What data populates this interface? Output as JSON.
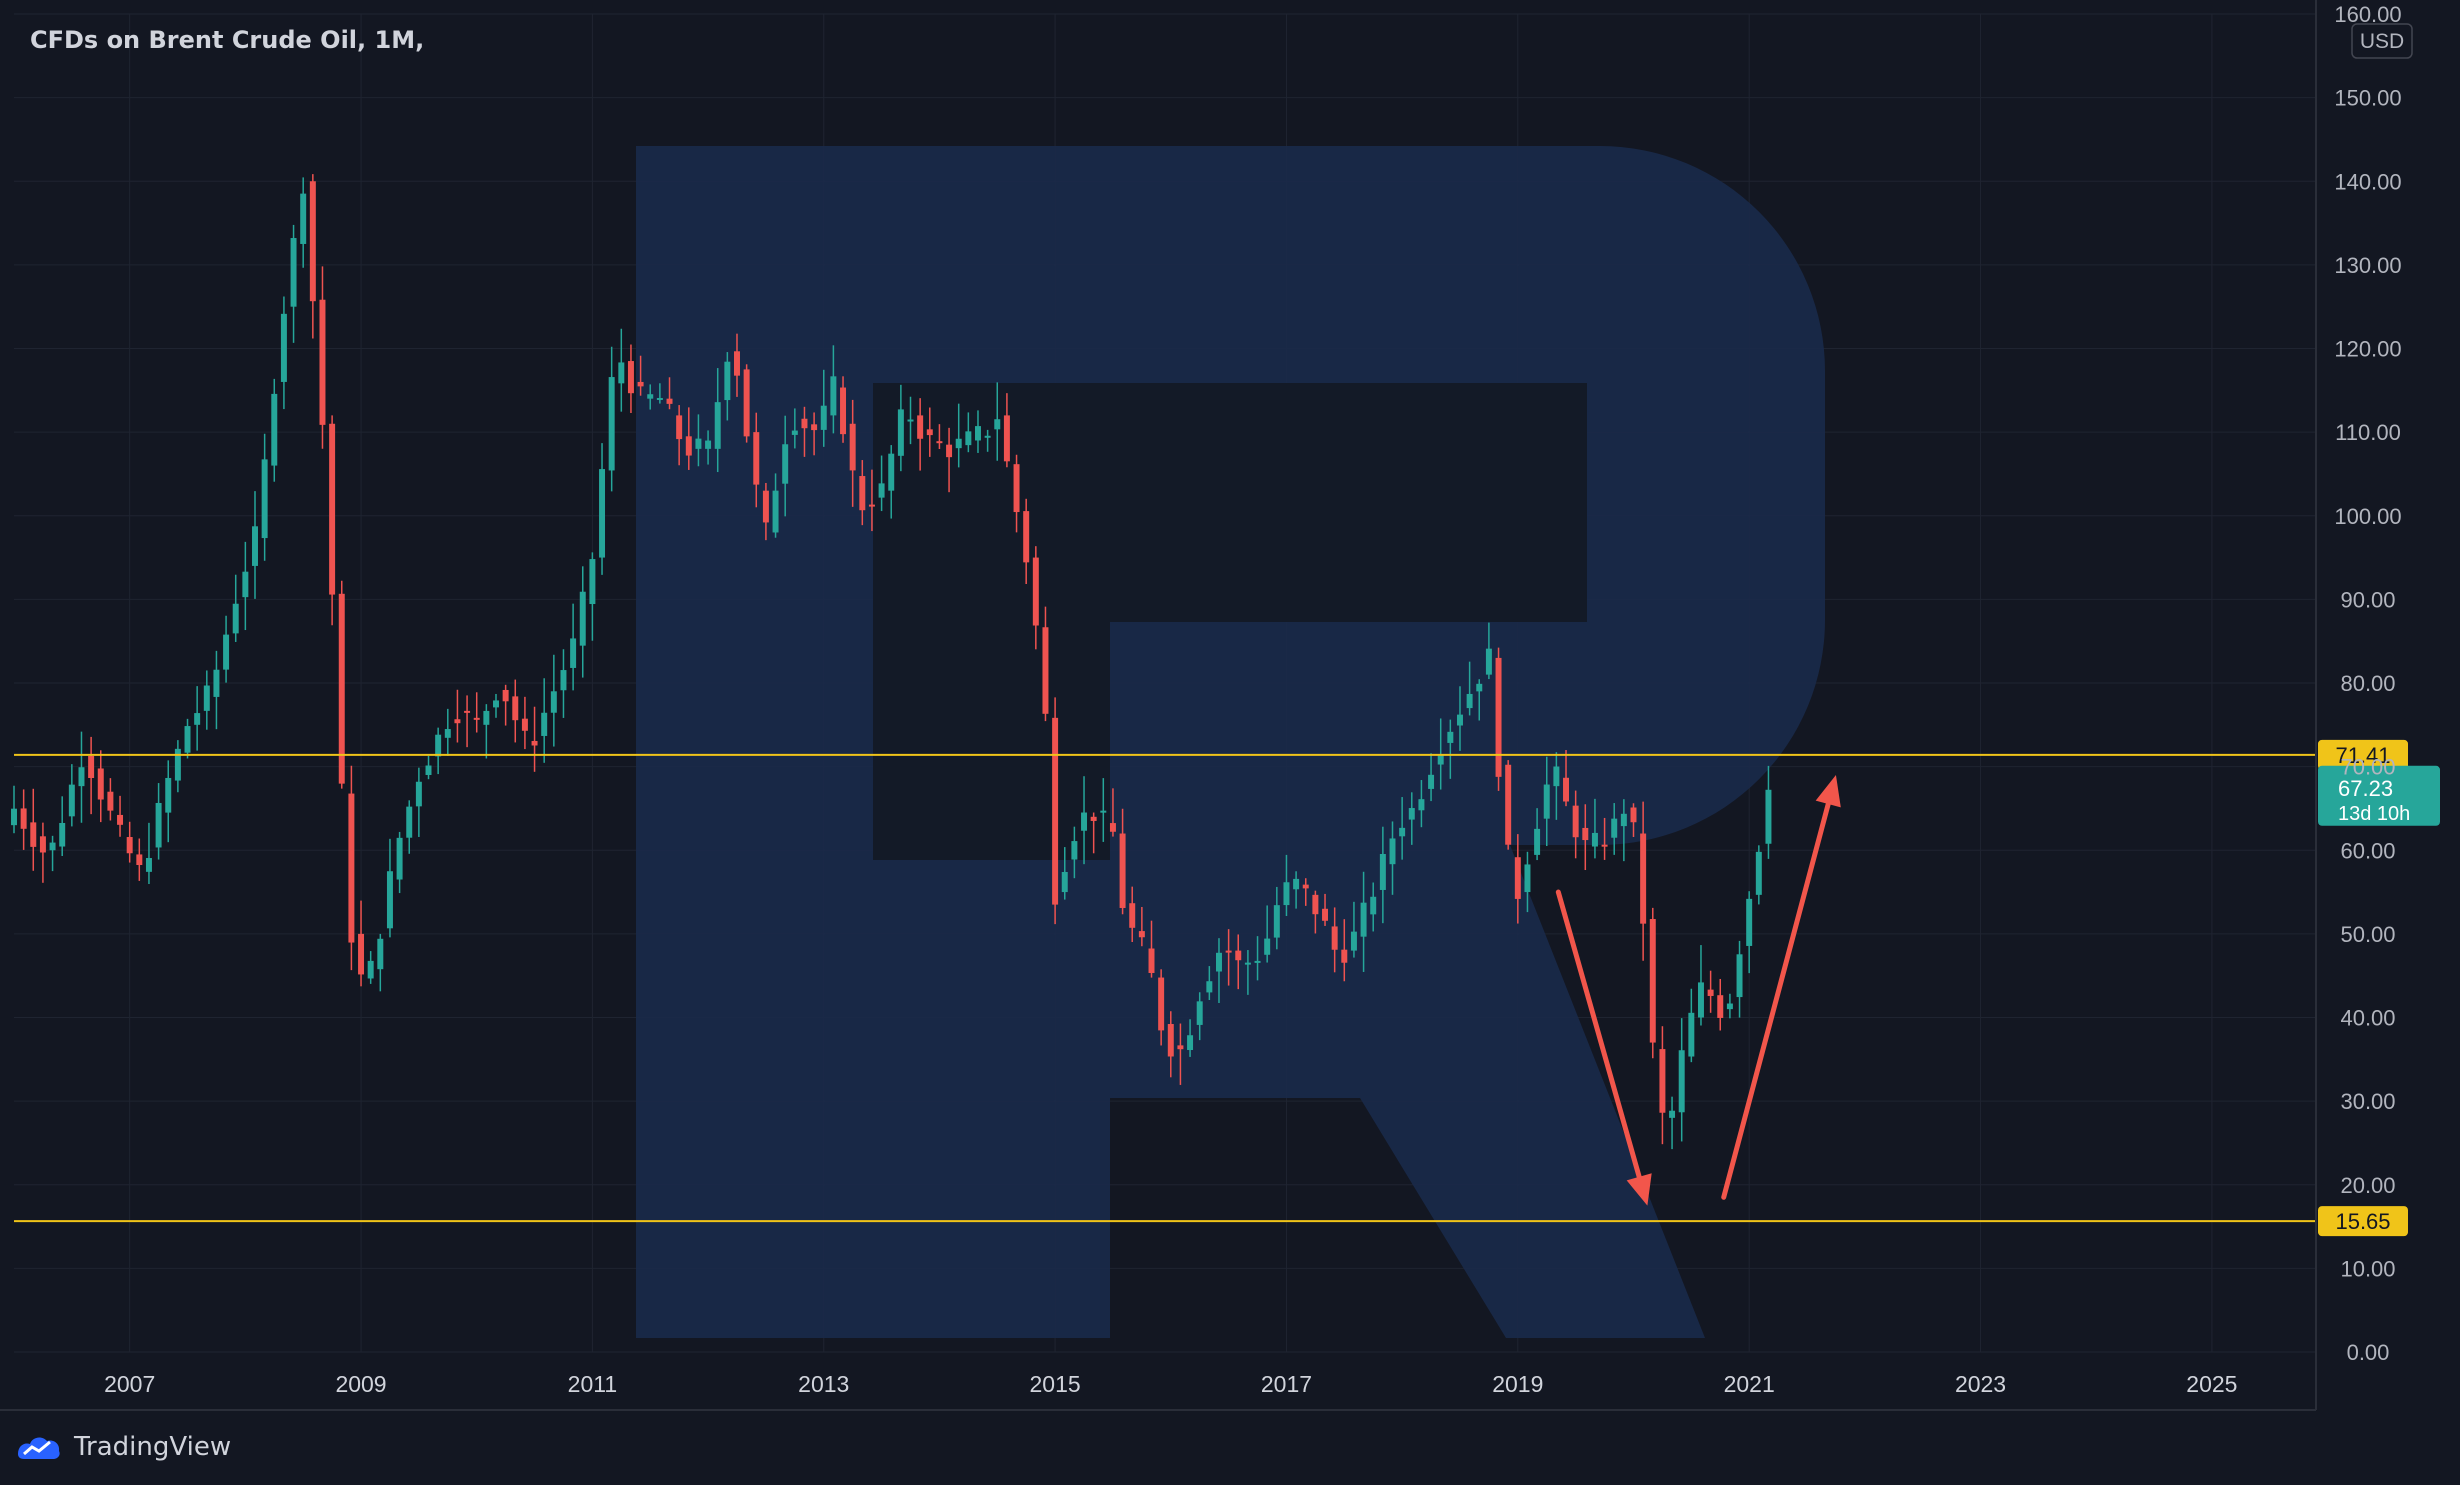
{
  "header": {
    "title": "CFDs on Brent Crude Oil, 1M,"
  },
  "footer": {
    "brand": "TradingView"
  },
  "colors": {
    "background": "#131722",
    "grid": "#1f2431",
    "up": "#26a69a",
    "down": "#ef5350",
    "level_line": "#f0c419",
    "arrow": "#f2564b",
    "watermark": "#1a2a4a",
    "text": "#b2b5be"
  },
  "chart_data": {
    "type": "candlestick",
    "title": "CFDs on Brent Crude Oil, 1M,",
    "interval": "1M",
    "currency": "USD",
    "xlim": [
      2006.0,
      2025.9
    ],
    "ylim": [
      0,
      160
    ],
    "x_ticks": [
      "2007",
      "2009",
      "2011",
      "2013",
      "2015",
      "2017",
      "2019",
      "2021",
      "2023",
      "2025"
    ],
    "y_ticks": [
      "0.00",
      "10.00",
      "20.00",
      "30.00",
      "40.00",
      "50.00",
      "60.00",
      "70.00",
      "80.00",
      "90.00",
      "100.00",
      "110.00",
      "120.00",
      "130.00",
      "140.00",
      "150.00",
      "160.00"
    ],
    "grid": true,
    "horizontal_levels": [
      {
        "value": 71.41,
        "label": "71.41"
      },
      {
        "value": 15.65,
        "label": "15.65"
      }
    ],
    "last_price": {
      "value": 67.23,
      "label": "67.23",
      "countdown": "13d 10h"
    },
    "annotations": [
      {
        "type": "arrow",
        "from": {
          "x": 2019.35,
          "y": 55
        },
        "to": {
          "x": 2020.12,
          "y": 17.5
        }
      },
      {
        "type": "arrow",
        "from": {
          "x": 2020.78,
          "y": 18.5
        },
        "to": {
          "x": 2021.75,
          "y": 69
        }
      }
    ],
    "anchor_points": [
      [
        2006.0,
        65
      ],
      [
        2006.3,
        59
      ],
      [
        2006.6,
        72
      ],
      [
        2006.9,
        62
      ],
      [
        2007.1,
        57
      ],
      [
        2007.3,
        67
      ],
      [
        2007.5,
        75
      ],
      [
        2007.7,
        79
      ],
      [
        2007.95,
        92
      ],
      [
        2008.1,
        98
      ],
      [
        2008.3,
        122
      ],
      [
        2008.5,
        140
      ],
      [
        2008.6,
        123
      ],
      [
        2008.7,
        105
      ],
      [
        2008.85,
        62
      ],
      [
        2008.95,
        44
      ],
      [
        2009.1,
        46
      ],
      [
        2009.3,
        60
      ],
      [
        2009.5,
        69
      ],
      [
        2009.8,
        77
      ],
      [
        2010.0,
        75
      ],
      [
        2010.2,
        80
      ],
      [
        2010.45,
        72
      ],
      [
        2010.6,
        77
      ],
      [
        2010.85,
        85
      ],
      [
        2011.0,
        95
      ],
      [
        2011.2,
        120
      ],
      [
        2011.4,
        114
      ],
      [
        2011.6,
        114
      ],
      [
        2011.8,
        108
      ],
      [
        2012.0,
        108
      ],
      [
        2012.2,
        122
      ],
      [
        2012.4,
        104
      ],
      [
        2012.5,
        98
      ],
      [
        2012.7,
        112
      ],
      [
        2012.95,
        110
      ],
      [
        2013.1,
        116
      ],
      [
        2013.3,
        101
      ],
      [
        2013.5,
        103
      ],
      [
        2013.7,
        113
      ],
      [
        2013.9,
        109
      ],
      [
        2014.1,
        108
      ],
      [
        2014.4,
        110
      ],
      [
        2014.5,
        112
      ],
      [
        2014.6,
        105
      ],
      [
        2014.75,
        95
      ],
      [
        2014.9,
        80
      ],
      [
        2015.0,
        55
      ],
      [
        2015.15,
        62
      ],
      [
        2015.3,
        65
      ],
      [
        2015.5,
        62
      ],
      [
        2015.6,
        52
      ],
      [
        2015.8,
        47
      ],
      [
        2015.95,
        37
      ],
      [
        2016.1,
        36
      ],
      [
        2016.25,
        43
      ],
      [
        2016.45,
        49
      ],
      [
        2016.6,
        46
      ],
      [
        2016.8,
        48
      ],
      [
        2016.95,
        55
      ],
      [
        2017.1,
        56
      ],
      [
        2017.3,
        52
      ],
      [
        2017.45,
        47
      ],
      [
        2017.6,
        50
      ],
      [
        2017.8,
        57
      ],
      [
        2017.95,
        63
      ],
      [
        2018.1,
        65
      ],
      [
        2018.3,
        72
      ],
      [
        2018.5,
        77
      ],
      [
        2018.75,
        83
      ],
      [
        2018.9,
        60
      ],
      [
        2019.0,
        55
      ],
      [
        2019.15,
        63
      ],
      [
        2019.3,
        70
      ],
      [
        2019.45,
        64
      ],
      [
        2019.6,
        60
      ],
      [
        2019.8,
        62
      ],
      [
        2019.95,
        66
      ],
      [
        2020.05,
        58
      ],
      [
        2020.2,
        30
      ],
      [
        2020.3,
        26
      ],
      [
        2020.45,
        38
      ],
      [
        2020.6,
        44
      ],
      [
        2020.8,
        40
      ],
      [
        2020.95,
        51
      ],
      [
        2021.1,
        62
      ],
      [
        2021.2,
        67.23
      ]
    ]
  }
}
